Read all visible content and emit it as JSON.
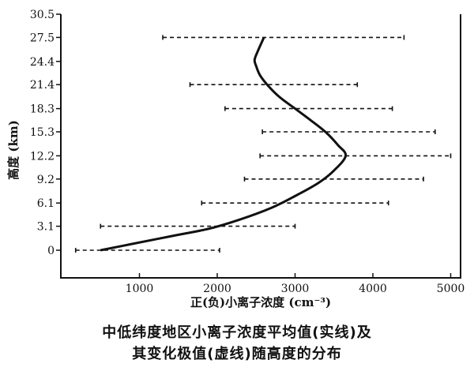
{
  "chart_data": {
    "type": "line",
    "title": "",
    "xlabel": "正(负)小离子浓度 (cm⁻³)",
    "ylabel": "高度 (km)",
    "xlim": [
      0,
      5000
    ],
    "ylim": [
      0,
      30.5
    ],
    "x_ticks": [
      "1000",
      "2000",
      "3000",
      "4000",
      "5000"
    ],
    "y_ticks": [
      "0",
      "3.1",
      "6.1",
      "9.2",
      "12.2",
      "15.3",
      "18.3",
      "21.4",
      "24.4",
      "27.5",
      "30.5"
    ],
    "y_tick_values": [
      0,
      3.1,
      6.1,
      9.2,
      12.2,
      15.3,
      18.3,
      21.4,
      24.4,
      27.5,
      30.5
    ],
    "series": [
      {
        "style": "solid",
        "points": [
          [
            500,
            0
          ],
          [
            900,
            0.8
          ],
          [
            1400,
            1.8
          ],
          [
            1900,
            2.8
          ],
          [
            2300,
            4.0
          ],
          [
            2700,
            5.5
          ],
          [
            3000,
            7.0
          ],
          [
            3300,
            8.7
          ],
          [
            3500,
            10.3
          ],
          [
            3650,
            12.2
          ],
          [
            3550,
            13.6
          ],
          [
            3400,
            15.2
          ],
          [
            3200,
            16.8
          ],
          [
            3000,
            18.3
          ],
          [
            2800,
            19.8
          ],
          [
            2650,
            21.3
          ],
          [
            2550,
            22.6
          ],
          [
            2500,
            23.8
          ],
          [
            2480,
            24.6
          ],
          [
            2520,
            25.7
          ],
          [
            2600,
            27.5
          ]
        ]
      },
      {
        "style": "dashed",
        "ranges": [
          {
            "y": 0,
            "min": 180,
            "max": 2030
          },
          {
            "y": 3.1,
            "min": 500,
            "max": 3000
          },
          {
            "y": 6.1,
            "min": 1800,
            "max": 4200
          },
          {
            "y": 9.2,
            "min": 2350,
            "max": 4650
          },
          {
            "y": 12.2,
            "min": 2550,
            "max": 5000
          },
          {
            "y": 15.3,
            "min": 2580,
            "max": 4800
          },
          {
            "y": 18.3,
            "min": 2100,
            "max": 4250
          },
          {
            "y": 21.4,
            "min": 1650,
            "max": 3800
          },
          {
            "y": 27.5,
            "min": 1300,
            "max": 4400
          }
        ]
      }
    ]
  },
  "caption": {
    "line1": "中低纬度地区小离子浓度平均值(实线)及",
    "line2": "其变化极值(虚线)随高度的分布"
  }
}
